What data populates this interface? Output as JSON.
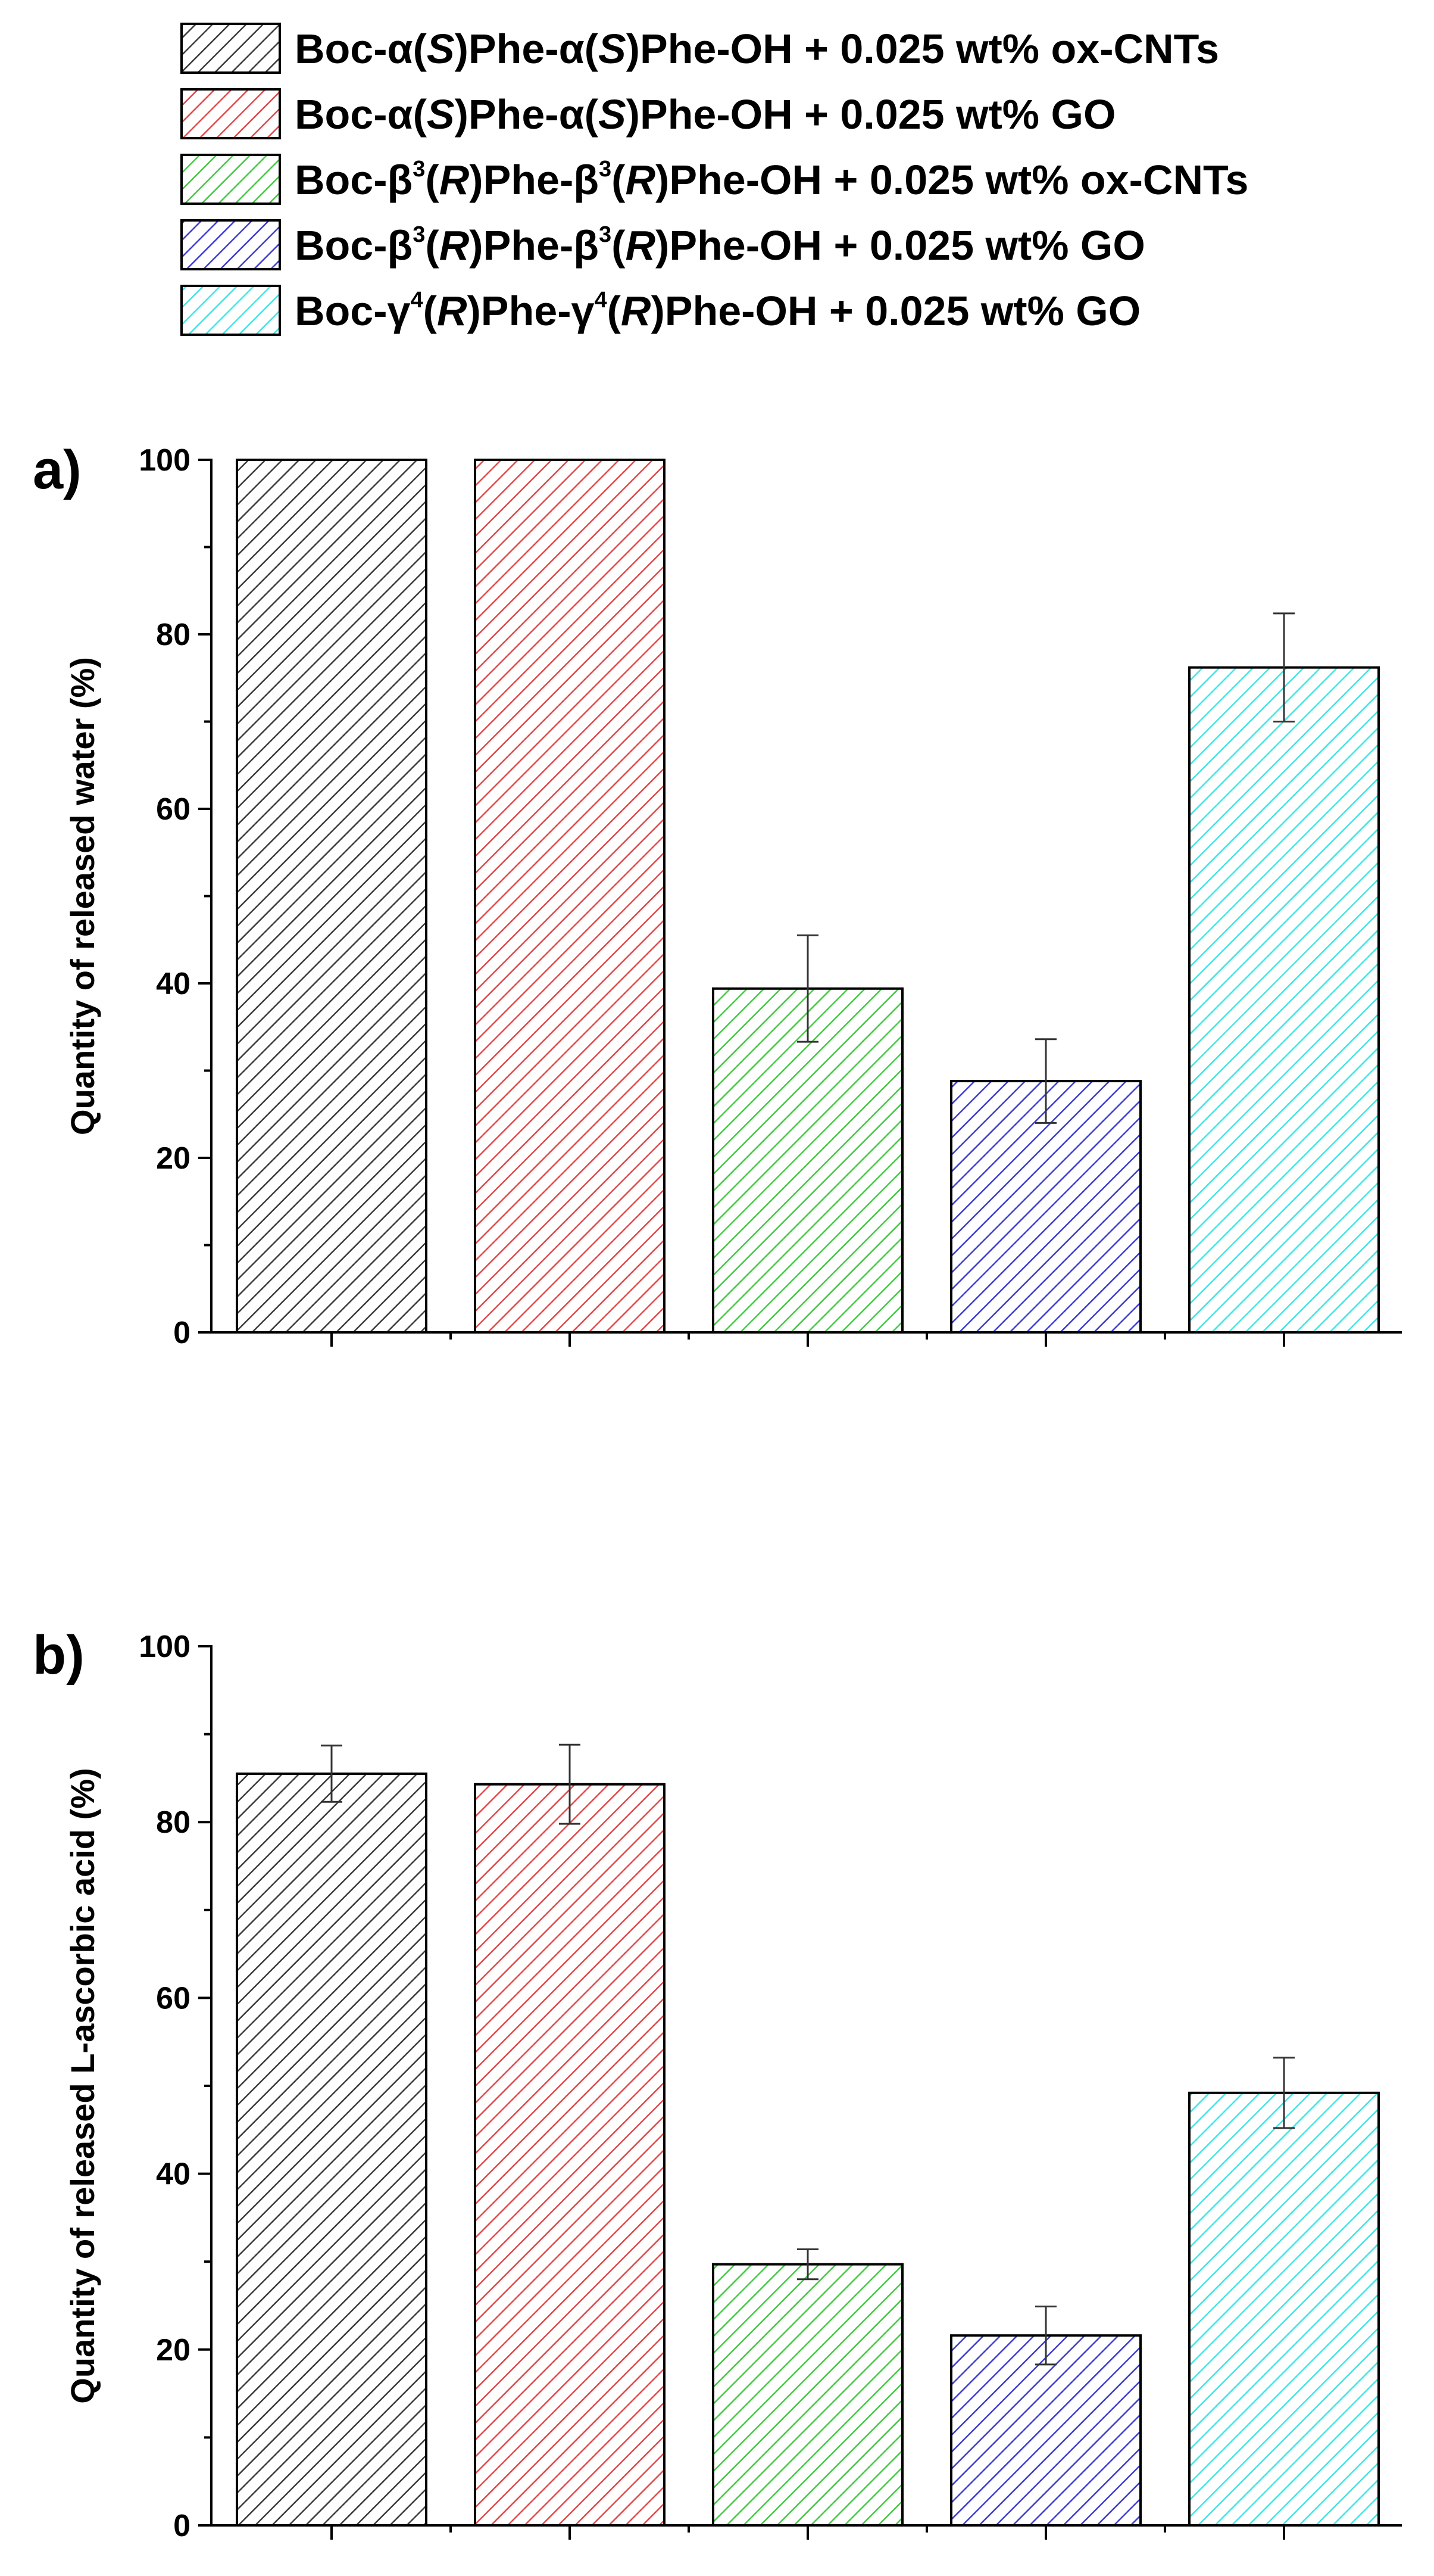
{
  "chart_data": [
    {
      "type": "bar",
      "panel": "a)",
      "title": "",
      "xlabel": "",
      "ylabel": "Quantity of released water (%)",
      "ylim": [
        0,
        100
      ],
      "yticks": [
        0,
        20,
        40,
        60,
        80,
        100
      ],
      "yticklabels": [
        "0",
        "20",
        "40",
        "60",
        "80",
        "100"
      ],
      "categories": [
        "Boc-α(S)Phe-α(S)Phe-OH + 0.025 wt% ox-CNTs",
        "Boc-α(S)Phe-α(S)Phe-OH + 0.025 wt% GO",
        "Boc-β3(R)Phe-β3(R)Phe-OH + 0.025 wt% ox-CNTs",
        "Boc-β3(R)Phe-β3(R)Phe-OH + 0.025 wt% GO",
        "Boc-γ4(R)Phe-γ4(R)Phe-OH + 0.025 wt% GO"
      ],
      "values": [
        100,
        100,
        39.4,
        28.8,
        76.2
      ],
      "errors": [
        0,
        0,
        6.1,
        4.8,
        6.2
      ]
    },
    {
      "type": "bar",
      "panel": "b)",
      "title": "",
      "xlabel": "",
      "ylabel": "Quantity of released L-ascorbic acid (%)",
      "ylim": [
        0,
        100
      ],
      "yticks": [
        0,
        20,
        40,
        60,
        80,
        100
      ],
      "yticklabels": [
        "0",
        "20",
        "40",
        "60",
        "80",
        "100"
      ],
      "categories": [
        "Boc-α(S)Phe-α(S)Phe-OH + 0.025 wt% ox-CNTs",
        "Boc-α(S)Phe-α(S)Phe-OH + 0.025 wt% GO",
        "Boc-β3(R)Phe-β3(R)Phe-OH + 0.025 wt% ox-CNTs",
        "Boc-β3(R)Phe-β3(R)Phe-OH + 0.025 wt% GO",
        "Boc-γ4(R)Phe-γ4(R)Phe-OH + 0.025 wt% GO"
      ],
      "values": [
        85.5,
        84.3,
        29.7,
        21.6,
        49.2
      ],
      "errors": [
        3.2,
        4.5,
        1.7,
        3.3,
        4.0
      ]
    }
  ],
  "legend": {
    "placement": "top",
    "entries": [
      {
        "series": 0,
        "parts": [
          [
            "Boc-α(",
            "n"
          ],
          [
            "S",
            "i"
          ],
          [
            ")Phe-α(",
            "n"
          ],
          [
            "S",
            "i"
          ],
          [
            ")Phe-OH + 0.025 wt% ox-CNTs",
            "n"
          ]
        ]
      },
      {
        "series": 1,
        "parts": [
          [
            "Boc-α(",
            "n"
          ],
          [
            "S",
            "i"
          ],
          [
            ")Phe-α(",
            "n"
          ],
          [
            "S",
            "i"
          ],
          [
            ")Phe-OH + 0.025 wt% GO",
            "n"
          ]
        ]
      },
      {
        "series": 2,
        "parts": [
          [
            "Boc-β",
            "n"
          ],
          [
            "3",
            "s"
          ],
          [
            "(",
            "n"
          ],
          [
            "R",
            "i"
          ],
          [
            ")Phe-β",
            "n"
          ],
          [
            "3",
            "s"
          ],
          [
            "(",
            "n"
          ],
          [
            "R",
            "i"
          ],
          [
            ")Phe-OH + 0.025 wt% ox-CNTs",
            "n"
          ]
        ]
      },
      {
        "series": 3,
        "parts": [
          [
            "Boc-β",
            "n"
          ],
          [
            "3",
            "s"
          ],
          [
            "(",
            "n"
          ],
          [
            "R",
            "i"
          ],
          [
            ")Phe-β",
            "n"
          ],
          [
            "3",
            "s"
          ],
          [
            "(",
            "n"
          ],
          [
            "R",
            "i"
          ],
          [
            ")Phe-OH + 0.025 wt% GO",
            "n"
          ]
        ]
      },
      {
        "series": 4,
        "parts": [
          [
            "Boc-γ",
            "n"
          ],
          [
            "4",
            "s"
          ],
          [
            "(",
            "n"
          ],
          [
            "R",
            "i"
          ],
          [
            ")Phe-γ",
            "n"
          ],
          [
            "4",
            "s"
          ],
          [
            "(",
            "n"
          ],
          [
            "R",
            "i"
          ],
          [
            ")Phe-OH + 0.025 wt% GO",
            "n"
          ]
        ]
      }
    ]
  },
  "series_colors": [
    {
      "fill": "#ffffff",
      "hatch": "#3a3a3a",
      "border": "#000000"
    },
    {
      "fill": "#ffffff",
      "hatch": "#e04848",
      "border": "#000000"
    },
    {
      "fill": "#ffffff",
      "hatch": "#44c844",
      "border": "#000000"
    },
    {
      "fill": "#ffffff",
      "hatch": "#3c3cd0",
      "border": "#000000"
    },
    {
      "fill": "#ffffff",
      "hatch": "#3ee6e6",
      "border": "#000000"
    }
  ]
}
